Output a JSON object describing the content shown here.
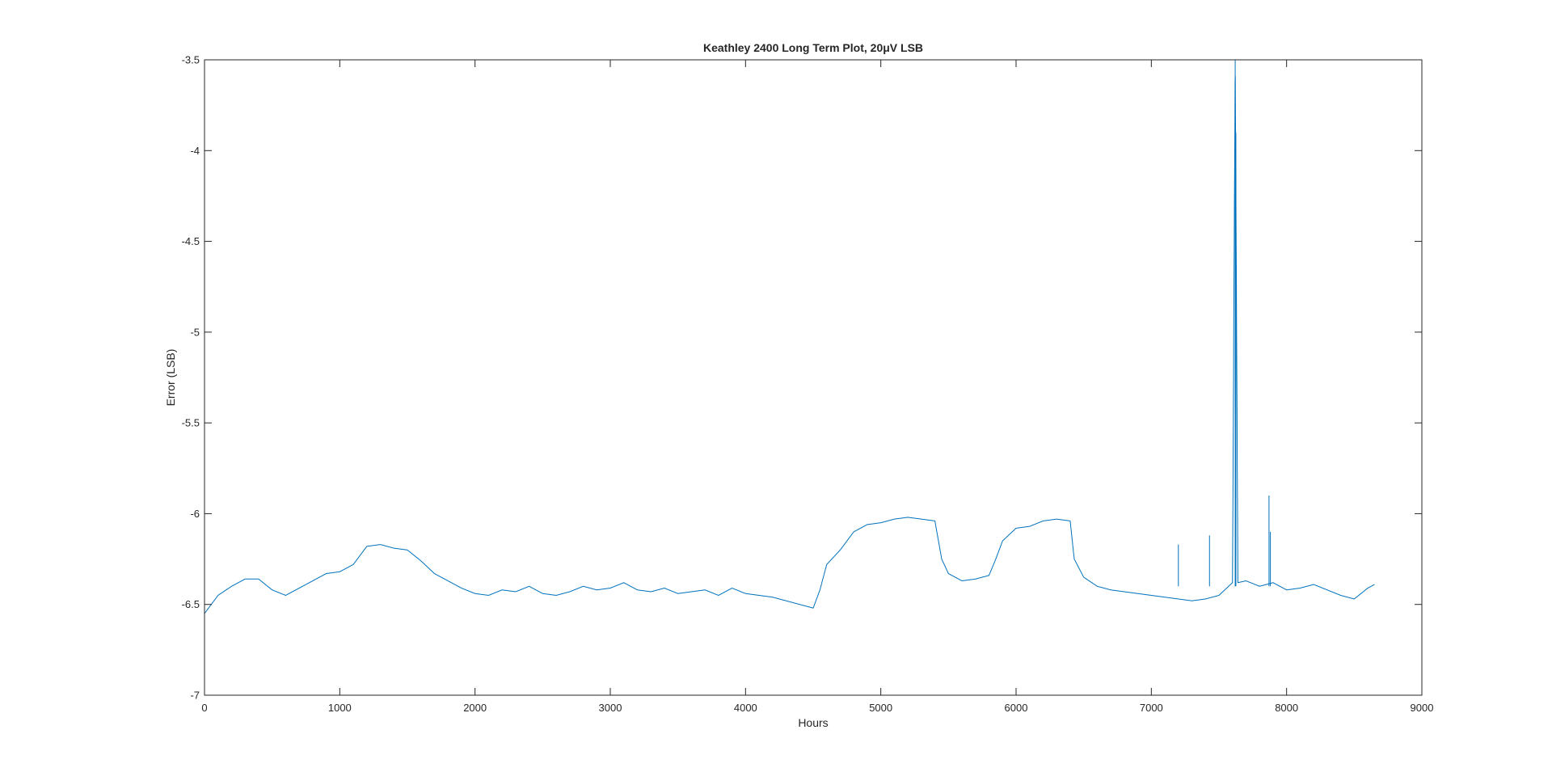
{
  "chart_data": {
    "type": "line",
    "title": "Keathley 2400 Long Term Plot, 20μV LSB",
    "xlabel": "Hours",
    "ylabel": "Error (LSB)",
    "xlim": [
      0,
      9000
    ],
    "ylim": [
      -7,
      -3.5
    ],
    "xticks": [
      0,
      1000,
      2000,
      3000,
      4000,
      5000,
      6000,
      7000,
      8000,
      9000
    ],
    "yticks": [
      -3.5,
      -4,
      -4.5,
      -5,
      -5.5,
      -6,
      -6.5,
      -7
    ],
    "xtick_labels": [
      "0",
      "1000",
      "2000",
      "3000",
      "4000",
      "5000",
      "6000",
      "7000",
      "8000",
      "9000"
    ],
    "ytick_labels": [
      "-3.5",
      "-4",
      "-4.5",
      "-5",
      "-5.5",
      "-6",
      "-6.5",
      "-7"
    ],
    "grid": false,
    "line_color": "#0072BD",
    "series": [
      {
        "x": [
          0,
          100,
          200,
          300,
          400,
          500,
          600,
          700,
          800,
          900,
          1000,
          1100,
          1200,
          1300,
          1400,
          1500,
          1600,
          1700,
          1800,
          1900,
          2000,
          2100,
          2200,
          2300,
          2400,
          2500,
          2600,
          2700,
          2800,
          2900,
          3000,
          3100,
          3200,
          3300,
          3400,
          3500,
          3600,
          3700,
          3800,
          3900,
          4000,
          4100,
          4200,
          4300,
          4400,
          4500,
          4550,
          4600,
          4700,
          4800,
          4900,
          5000,
          5100,
          5200,
          5300,
          5400,
          5450,
          5500,
          5600,
          5700,
          5800,
          5850,
          5900,
          6000,
          6100,
          6200,
          6300,
          6400,
          6430,
          6500,
          6600,
          6700,
          6800,
          6900,
          7000,
          7100,
          7200,
          7300,
          7400,
          7500,
          7600,
          7620,
          7640,
          7700,
          7800,
          7900,
          8000,
          8100,
          8200,
          8300,
          8400,
          8500,
          8600,
          8650
        ],
        "y": [
          -6.55,
          -6.45,
          -6.4,
          -6.36,
          -6.36,
          -6.42,
          -6.45,
          -6.41,
          -6.37,
          -6.33,
          -6.32,
          -6.28,
          -6.18,
          -6.17,
          -6.19,
          -6.2,
          -6.26,
          -6.33,
          -6.37,
          -6.41,
          -6.44,
          -6.45,
          -6.42,
          -6.43,
          -6.4,
          -6.44,
          -6.45,
          -6.43,
          -6.4,
          -6.42,
          -6.41,
          -6.38,
          -6.42,
          -6.43,
          -6.41,
          -6.44,
          -6.43,
          -6.42,
          -6.45,
          -6.41,
          -6.44,
          -6.45,
          -6.46,
          -6.48,
          -6.5,
          -6.52,
          -6.42,
          -6.28,
          -6.2,
          -6.1,
          -6.06,
          -6.05,
          -6.03,
          -6.02,
          -6.03,
          -6.04,
          -6.25,
          -6.33,
          -6.37,
          -6.36,
          -6.34,
          -6.25,
          -6.15,
          -6.08,
          -6.07,
          -6.04,
          -6.03,
          -6.04,
          -6.25,
          -6.35,
          -6.4,
          -6.42,
          -6.43,
          -6.44,
          -6.45,
          -6.46,
          -6.47,
          -6.48,
          -6.47,
          -6.45,
          -6.38,
          -3.5,
          -6.38,
          -6.37,
          -6.4,
          -6.38,
          -6.42,
          -6.41,
          -6.39,
          -6.42,
          -6.45,
          -6.47,
          -6.41,
          -6.39
        ]
      }
    ],
    "spikes": [
      {
        "x": 7200,
        "y": -6.17
      },
      {
        "x": 7430,
        "y": -6.12
      },
      {
        "x": 7620,
        "y": -3.5
      },
      {
        "x": 7625,
        "y": -3.9
      },
      {
        "x": 7870,
        "y": -5.9
      },
      {
        "x": 7880,
        "y": -6.1
      }
    ]
  }
}
